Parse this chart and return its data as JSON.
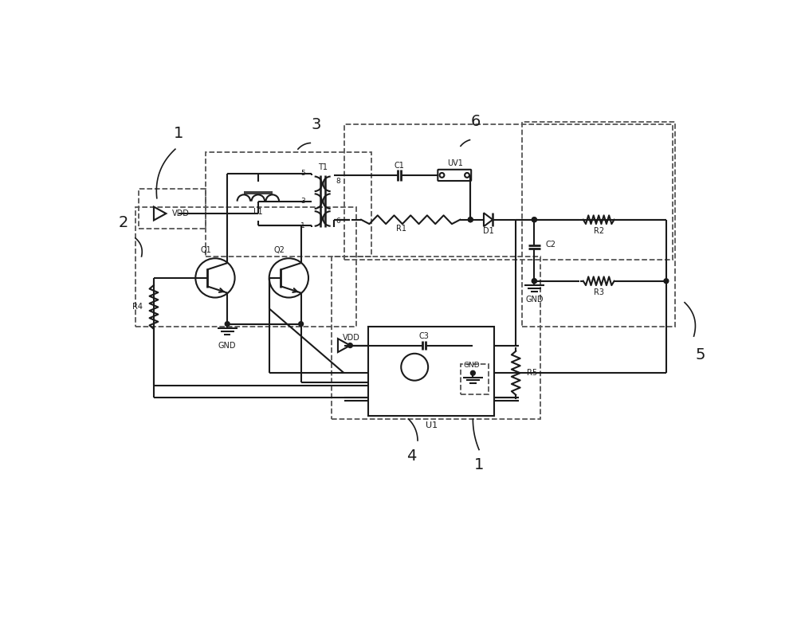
{
  "bg": "#ffffff",
  "lc": "#1a1a1a",
  "dc": "#555555",
  "lw": 1.5,
  "dlw": 1.3,
  "fw": 10.0,
  "fh": 7.77,
  "dpi": 100,
  "xlim": [
    0,
    100
  ],
  "ylim": [
    0,
    77.7
  ]
}
